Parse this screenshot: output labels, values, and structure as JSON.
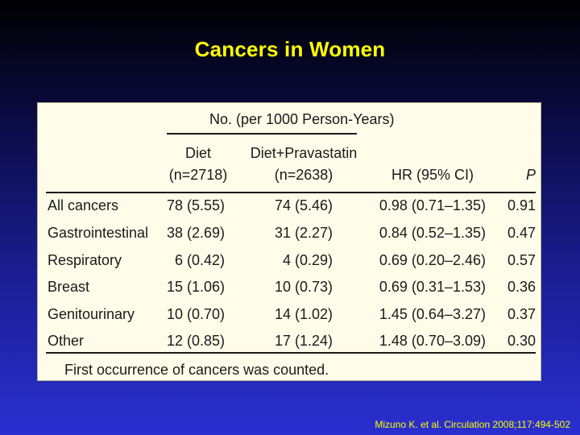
{
  "slide": {
    "title": "Cancers in Women",
    "citation": "Mizuno K. et al. Circulation 2008;117:494-502"
  },
  "table": {
    "group_header": "No. (per 1000 Person-Years)",
    "columns": {
      "diet_line1": "Diet",
      "diet_line2": "(n=2718)",
      "pra_line1": "Diet+Pravastatin",
      "pra_line2": "(n=2638)",
      "hr": "HR (95% CI)",
      "p": "P"
    },
    "rows": [
      {
        "label": "All cancers",
        "diet": "78 (5.55)",
        "pra": "74 (5.46)",
        "hr": "0.98 (0.71–1.35)",
        "p": "0.91"
      },
      {
        "label": "Gastrointestinal",
        "diet": "38 (2.69)",
        "pra": "31 (2.27)",
        "hr": "0.84 (0.52–1.35)",
        "p": "0.47"
      },
      {
        "label": "Respiratory",
        "diet": "6 (0.42)",
        "pra": "4 (0.29)",
        "hr": "0.69 (0.20–2.46)",
        "p": "0.57"
      },
      {
        "label": "Breast",
        "diet": "15 (1.06)",
        "pra": "10 (0.73)",
        "hr": "0.69 (0.31–1.53)",
        "p": "0.36"
      },
      {
        "label": "Genitourinary",
        "diet": "10 (0.70)",
        "pra": "14 (1.02)",
        "hr": "1.45 (0.64–3.27)",
        "p": "0.37"
      },
      {
        "label": "Other",
        "diet": "12 (0.85)",
        "pra": "17 (1.24)",
        "hr": "1.48 (0.70–3.09)",
        "p": "0.30"
      }
    ],
    "footnote": "First occurrence of cancers was counted."
  }
}
